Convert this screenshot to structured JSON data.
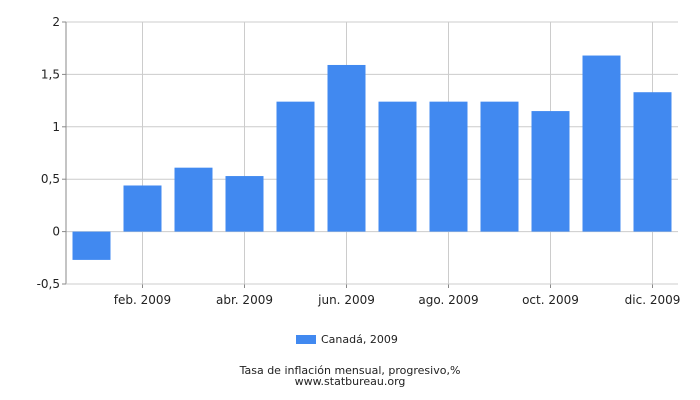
{
  "chart_data": {
    "type": "bar",
    "categories": [
      "ene. 2009",
      "feb. 2009",
      "mar. 2009",
      "abr. 2009",
      "may. 2009",
      "jun. 2009",
      "jul. 2009",
      "ago. 2009",
      "sept. 2009",
      "oct. 2009",
      "nov. 2009",
      "dic. 2009"
    ],
    "x_tick_labels": [
      "feb. 2009",
      "abr. 2009",
      "jun. 2009",
      "ago. 2009",
      "oct. 2009",
      "dic. 2009"
    ],
    "series": [
      {
        "name": "Canadá, 2009",
        "values": [
          -0.27,
          0.44,
          0.61,
          0.53,
          1.24,
          1.59,
          1.24,
          1.24,
          1.24,
          1.15,
          1.68,
          1.33
        ]
      }
    ],
    "y_ticks": [
      "-0,5",
      "0",
      "0,5",
      "1",
      "1,5",
      "2"
    ],
    "y_tick_values": [
      -0.5,
      0,
      0.5,
      1,
      1.5,
      2
    ],
    "ylim": [
      -0.5,
      2
    ],
    "grid": true,
    "legend_position": "bottom-center",
    "color": "#4189f0"
  },
  "footer": {
    "line1": "Tasa de inflación mensual, progresivo,%",
    "line2": "www.statbureau.org"
  }
}
